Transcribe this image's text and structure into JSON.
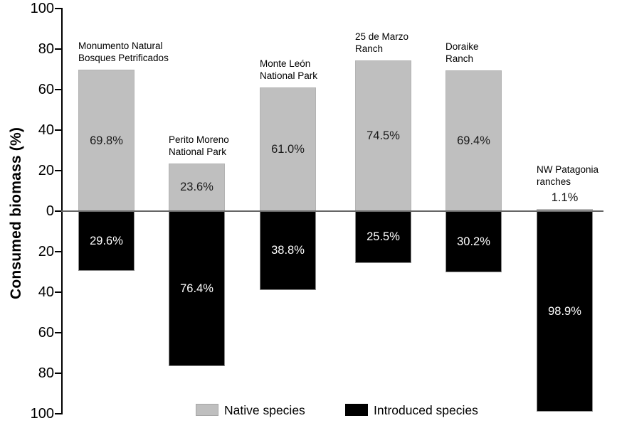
{
  "chart_data": {
    "type": "bar",
    "subtype": "diverging-stacked-vertical",
    "title": "",
    "xlabel": "",
    "ylabel": "Consumed biomass (%)",
    "categories": [
      "Monumento Natural Bosques Petrificados",
      "Perito Moreno National Park",
      "Monte León National Park",
      "25 de Marzo Ranch",
      "Doraike Ranch",
      "NW Patagonia ranches"
    ],
    "series": [
      {
        "name": "Native species",
        "color": "#bfbfbf",
        "direction": "up",
        "values": [
          69.8,
          23.6,
          61.0,
          74.5,
          69.4,
          1.1
        ]
      },
      {
        "name": "Introduced species",
        "color": "#000000",
        "direction": "down",
        "values": [
          29.6,
          76.4,
          38.8,
          25.5,
          30.2,
          98.9
        ]
      }
    ],
    "yaxis": {
      "tick_labels": [
        "100",
        "80",
        "60",
        "40",
        "20",
        "0",
        "20",
        "40",
        "60",
        "80",
        "100"
      ],
      "tick_values": [
        100,
        80,
        60,
        40,
        20,
        0,
        -20,
        -40,
        -60,
        -80,
        -100
      ],
      "range": [
        -100,
        100
      ],
      "grid": false
    },
    "legend_position": "bottom-center"
  },
  "bars": [
    {
      "name_lines": "Monumento Natural\nBosques Petrificados",
      "native_label": "69.8%",
      "introduced_label": "29.6%"
    },
    {
      "name_lines": "Perito Moreno\nNational Park",
      "native_label": "23.6%",
      "introduced_label": "76.4%"
    },
    {
      "name_lines": "Monte León\nNational Park",
      "native_label": "61.0%",
      "introduced_label": "38.8%"
    },
    {
      "name_lines": "25 de Marzo\nRanch",
      "native_label": "74.5%",
      "introduced_label": "25.5%"
    },
    {
      "name_lines": "Doraike\nRanch",
      "native_label": "69.4%",
      "introduced_label": "30.2%"
    },
    {
      "name_lines": "NW Patagonia\nranches",
      "native_label": "1.1%",
      "introduced_label": "98.9%"
    }
  ],
  "legend": {
    "items": [
      {
        "label": "Native species",
        "color": "#bfbfbf"
      },
      {
        "label": "Introduced species",
        "color": "#000000"
      }
    ]
  },
  "colors": {
    "native": "#bfbfbf",
    "introduced": "#000000",
    "axis": "#000000",
    "zero_line": "#666666",
    "value_text_on_native": "#1a1a1a",
    "value_text_on_introduced": "#ffffff"
  }
}
